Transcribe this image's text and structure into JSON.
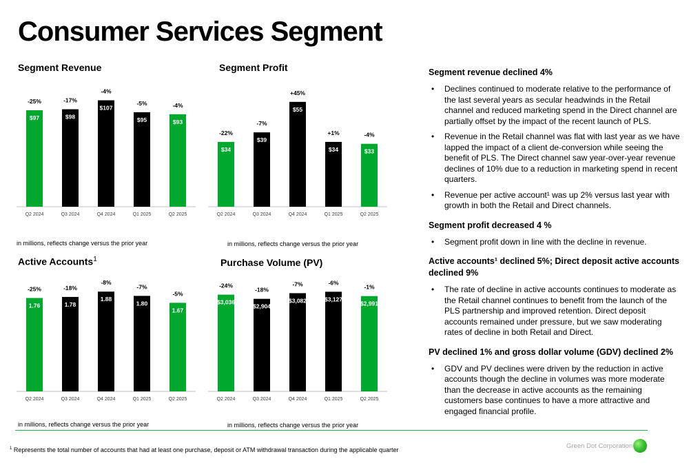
{
  "page_title": "Consumer Services Segment",
  "colors": {
    "green": "#00a82d",
    "black": "#000000",
    "rule": "#22b14c"
  },
  "charts": {
    "revenue": {
      "title": "Segment Revenue",
      "note": "in millions, reflects change versus the prior year"
    },
    "profit": {
      "title": "Segment Profit",
      "note": "in millions, reflects change versus the prior year"
    },
    "accounts": {
      "title": "Active Accounts",
      "title_sup": "1",
      "note": "in millions, reflects change versus the prior year"
    },
    "pv": {
      "title": "Purchase Volume (PV)",
      "note": "in millions, reflects change versus the prior year"
    }
  },
  "chart_data": [
    {
      "type": "bar",
      "title": "Segment Revenue",
      "categories": [
        "Q2 2024",
        "Q3 2024",
        "Q4 2024",
        "Q1 2025",
        "Q2 2025"
      ],
      "values": [
        97,
        98,
        107,
        95,
        93
      ],
      "value_labels": [
        "$97",
        "$98",
        "$107",
        "$95",
        "$93"
      ],
      "change_labels": [
        "-25%",
        "-17%",
        "-4%",
        "-5%",
        "-4%"
      ],
      "bar_colors": [
        "#00a82d",
        "#000000",
        "#000000",
        "#000000",
        "#00a82d"
      ],
      "ylim": [
        0,
        115
      ]
    },
    {
      "type": "bar",
      "title": "Segment Profit",
      "categories": [
        "Q2 2024",
        "Q3 2024",
        "Q4 2024",
        "Q1 2025",
        "Q2 2025"
      ],
      "values": [
        34,
        39,
        55,
        34,
        33
      ],
      "value_labels": [
        "$34",
        "$39",
        "$55",
        "$34",
        "$33"
      ],
      "change_labels": [
        "-22%",
        "-7%",
        "+45%",
        "+1%",
        "-4%"
      ],
      "bar_colors": [
        "#00a82d",
        "#000000",
        "#000000",
        "#000000",
        "#00a82d"
      ],
      "ylim": [
        0,
        60
      ]
    },
    {
      "type": "bar",
      "title": "Active Accounts",
      "categories": [
        "Q2 2024",
        "Q3 2024",
        "Q4 2024",
        "Q1 2025",
        "Q2 2025"
      ],
      "values": [
        1.76,
        1.78,
        1.88,
        1.8,
        1.67
      ],
      "value_labels": [
        "1.76",
        "1.78",
        "1.88",
        "1.80",
        "1.67"
      ],
      "change_labels": [
        "-25%",
        "-18%",
        "-8%",
        "-7%",
        "-5%"
      ],
      "bar_colors": [
        "#00a82d",
        "#000000",
        "#000000",
        "#000000",
        "#00a82d"
      ],
      "ylim": [
        0,
        2.0
      ]
    },
    {
      "type": "bar",
      "title": "Purchase Volume (PV)",
      "categories": [
        "Q2 2024",
        "Q3 2024",
        "Q4 2024",
        "Q1 2025",
        "Q2 2025"
      ],
      "values": [
        3036,
        2904,
        3082,
        3127,
        2991
      ],
      "value_labels": [
        "$3,036",
        "$2,904",
        "$3,082",
        "$3,127",
        "$2,991"
      ],
      "change_labels": [
        "-24%",
        "-18%",
        "-7%",
        "-6%",
        "-1%"
      ],
      "bar_colors": [
        "#00a82d",
        "#000000",
        "#000000",
        "#000000",
        "#00a82d"
      ],
      "ylim": [
        0,
        3330
      ]
    }
  ],
  "commentary": [
    {
      "heading": "Segment revenue declined 4%",
      "bullets": [
        "Declines continued to moderate relative to the performance of the last several years as secular headwinds in the Retail channel and reduced marketing spend in the Direct channel are partially offset by the impact of the recent launch of PLS.",
        "Revenue in the Retail channel was flat with last year as we have lapped the impact of a client de-conversion while seeing the benefit of PLS. The Direct channel saw year-over-year revenue declines of 10% due to a reduction in marketing spend in recent quarters.",
        "Revenue per active account¹ was up 2% versus last year with growth in both the Retail and Direct channels."
      ]
    },
    {
      "heading": "Segment profit decreased 4 %",
      "bullets": [
        "Segment profit down in line with the decline in revenue."
      ]
    },
    {
      "heading": "Active accounts¹ declined 5%; Direct deposit active accounts declined 9%",
      "bullets": [
        "The rate of decline in active accounts continues to moderate as the Retail channel continues to benefit from the launch of the PLS partnership and improved retention. Direct deposit accounts remained under pressure, but we saw moderating rates of decline in both  Retail and Direct."
      ]
    },
    {
      "heading": "PV declined 1% and gross dollar volume (GDV) declined 2%",
      "bullets": [
        "GDV and PV declines were driven by the reduction in active accounts though the decline in volumes was more moderate than the decrease in active accounts as the remaining customers base continues to have a more attractive and engaged financial profile."
      ]
    }
  ],
  "footnote": {
    "sup": "1",
    "text": "Represents the total number of accounts that had at least one purchase, deposit or ATM withdrawal transaction during the applicable quarter"
  },
  "brand": "Green Dot Corporation",
  "brand_logo_icon": "green-dot-logo-icon"
}
